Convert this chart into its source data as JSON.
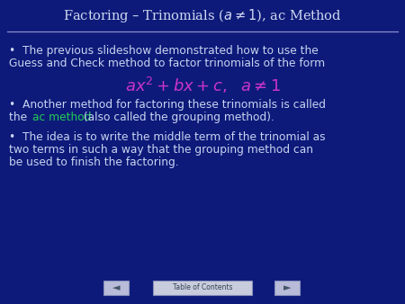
{
  "title": "Factoring – Trinomials ($a \\neq 1$), ac Method",
  "bg_color": "#0d1a7a",
  "title_color": "#d0d8f0",
  "title_line_color": "#8890cc",
  "text_color": "#c8d4f0",
  "ac_method_color": "#22cc55",
  "formula_color": "#cc33cc",
  "bullet1_line1": "•  The previous slideshow demonstrated how to use the",
  "bullet1_line2": "Guess and Check method to factor trinomials of the form",
  "formula": "$ax^2+bx+c, \\ \\ a\\neq1$",
  "bullet2_line1": "•  Another method for factoring these trinomials is called",
  "bullet2_line2_pre": "the ",
  "bullet2_ac": "ac method",
  "bullet2_line2_post": " (also called the grouping method).",
  "bullet3_line1": "•  The idea is to write the middle term of the trinomial as",
  "bullet3_line2": "two terms in such a way that the grouping method can",
  "bullet3_line3": "be used to finish the factoring.",
  "nav_bg": "#b8bcd8",
  "nav_border": "#8890bb",
  "toc_text": "Table of Contents",
  "toc_bg": "#c8ccdc",
  "toc_border": "#8890bb",
  "font_size_title": 10.5,
  "font_size_body": 8.8,
  "font_size_formula": 13,
  "font_size_toc": 5.5,
  "font_size_nav": 8
}
